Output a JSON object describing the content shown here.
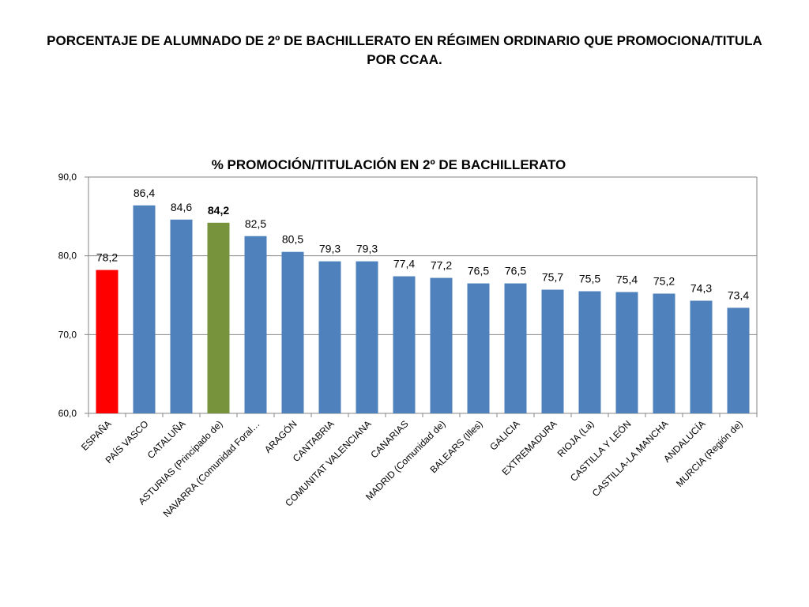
{
  "slide": {
    "title": "PORCENTAJE DE ALUMNADO DE 2º DE BACHILLERATO EN RÉGIMEN ORDINARIO QUE PROMOCIONA/TITULA POR CCAA."
  },
  "chart_data": {
    "type": "bar",
    "title": "% PROMOCIÓN/TITULACIÓN EN 2º DE BACHILLERATO",
    "xlabel": "",
    "ylabel": "",
    "ylim": [
      60,
      90
    ],
    "yticks": [
      60,
      70,
      80,
      90
    ],
    "ytick_labels": [
      "60,0",
      "70,0",
      "80,0",
      "90,0"
    ],
    "grid": true,
    "legend": "none",
    "categories": [
      "ESPAÑA",
      "PAÍS VASCO",
      "CATALUÑA",
      "ASTURIAS (Principado de)",
      "NAVARRA (Comunidad Foral…",
      "ARAGÓN",
      "CANTABRIA",
      "COMUNITAT VALENCIANA",
      "CANARIAS",
      "MADRID (Comunidad de)",
      "BALEARS (Illes)",
      "GALICIA",
      "EXTREMADURA",
      "RIOJA (La)",
      "CASTILLA Y LEÓN",
      "CASTILLA-LA MANCHA",
      "ANDALUCÍA",
      "MURCIA (Región de)"
    ],
    "values": [
      78.2,
      86.4,
      84.6,
      84.2,
      82.5,
      80.5,
      79.3,
      79.3,
      77.4,
      77.2,
      76.5,
      76.5,
      75.7,
      75.5,
      75.4,
      75.2,
      74.3,
      73.4
    ],
    "value_labels": [
      "78,2",
      "86,4",
      "84,6",
      "84,2",
      "82,5",
      "80,5",
      "79,3",
      "79,3",
      "77,4",
      "77,2",
      "76,5",
      "76,5",
      "75,7",
      "75,5",
      "75,4",
      "75,2",
      "74,3",
      "73,4"
    ],
    "bar_colors": [
      "#ff0000",
      "#4f81bd",
      "#4f81bd",
      "#77933c",
      "#4f81bd",
      "#4f81bd",
      "#4f81bd",
      "#4f81bd",
      "#4f81bd",
      "#4f81bd",
      "#4f81bd",
      "#4f81bd",
      "#4f81bd",
      "#4f81bd",
      "#4f81bd",
      "#4f81bd",
      "#4f81bd",
      "#4f81bd"
    ],
    "bold_labels": [
      false,
      false,
      false,
      true,
      false,
      false,
      false,
      false,
      false,
      false,
      false,
      false,
      false,
      false,
      false,
      false,
      false,
      false
    ]
  }
}
